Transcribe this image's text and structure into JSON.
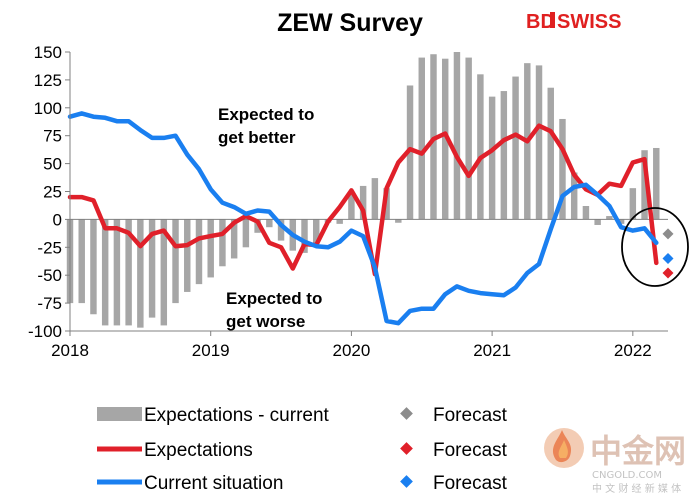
{
  "header": {
    "title": "ZEW Survey",
    "logo_bd": "BD",
    "logo_swiss": "SWISS",
    "brand_color": "#e02020"
  },
  "watermark": {
    "main": "中金网",
    "sub": "CNGOLD.COM",
    "tagline": "中 文 财 经 新 媒 体",
    "icon": "flame-logo-icon"
  },
  "annotations": {
    "better_line1": "Expected to",
    "better_line2": "get better",
    "worse_line1": "Expected to",
    "worse_line2": "get worse"
  },
  "legend": {
    "items": [
      {
        "label": "Expectations - current",
        "forecast_label": "Forecast",
        "color": "#a6a6a6",
        "marker": "bar"
      },
      {
        "label": "Expectations",
        "forecast_label": "Forecast",
        "color": "#e0202a",
        "marker": "line"
      },
      {
        "label": "Current situation",
        "forecast_label": "Forecast",
        "color": "#1a7ff0",
        "marker": "line"
      }
    ]
  },
  "chart_data": {
    "type": "bar+line",
    "title": "ZEW Survey",
    "x_tick_labels": [
      "2018",
      "2019",
      "2020",
      "2021",
      "2022"
    ],
    "x_start": "2018-01",
    "x_end": "2022-04",
    "ylim": [
      -100,
      150
    ],
    "y_ticks": [
      150,
      125,
      100,
      75,
      50,
      25,
      0,
      -25,
      -50,
      -75,
      -100
    ],
    "grid": false,
    "legend_position": "bottom",
    "months": [
      "2018-01",
      "2018-02",
      "2018-03",
      "2018-04",
      "2018-05",
      "2018-06",
      "2018-07",
      "2018-08",
      "2018-09",
      "2018-10",
      "2018-11",
      "2018-12",
      "2019-01",
      "2019-02",
      "2019-03",
      "2019-04",
      "2019-05",
      "2019-06",
      "2019-07",
      "2019-08",
      "2019-09",
      "2019-10",
      "2019-11",
      "2019-12",
      "2020-01",
      "2020-02",
      "2020-03",
      "2020-04",
      "2020-05",
      "2020-06",
      "2020-07",
      "2020-08",
      "2020-09",
      "2020-10",
      "2020-11",
      "2020-12",
      "2021-01",
      "2021-02",
      "2021-03",
      "2021-04",
      "2021-05",
      "2021-06",
      "2021-07",
      "2021-08",
      "2021-09",
      "2021-10",
      "2021-11",
      "2021-12",
      "2022-01",
      "2022-02",
      "2022-03"
    ],
    "series": [
      {
        "name": "Expectations - current",
        "type": "bar",
        "color": "#a6a6a6",
        "values": [
          -75,
          -75,
          -85,
          -95,
          -95,
          -95,
          -97,
          -88,
          -95,
          -75,
          -65,
          -58,
          -52,
          -42,
          -35,
          -25,
          -12,
          -7,
          -19,
          -28,
          -30,
          -22,
          -3,
          -4,
          24,
          30,
          37,
          28,
          -3,
          120,
          145,
          148,
          144,
          150,
          145,
          130,
          110,
          115,
          128,
          140,
          138,
          118,
          90,
          42,
          12,
          -5,
          3,
          -4,
          28,
          62,
          64
        ]
      },
      {
        "name": "Expectations",
        "type": "line",
        "color": "#e0202a",
        "values": [
          20,
          20,
          17,
          -8,
          -8,
          -12,
          -24,
          -13,
          -10,
          -24,
          -23,
          -17,
          -15,
          -13,
          -3,
          3,
          -2,
          -21,
          -25,
          -44,
          -22,
          -23,
          -2,
          11,
          26,
          8,
          -49,
          28,
          51,
          63,
          59,
          72,
          77,
          56,
          39,
          55,
          62,
          71,
          76,
          70,
          84,
          79,
          63,
          40,
          27,
          22,
          32,
          30,
          51,
          54,
          -39
        ]
      },
      {
        "name": "Current situation",
        "type": "line",
        "color": "#1a7ff0",
        "values": [
          92,
          95,
          92,
          91,
          88,
          88,
          80,
          73,
          73,
          75,
          58,
          45,
          27,
          15,
          11,
          5,
          8,
          7,
          -5,
          -14,
          -20,
          -24,
          -25,
          -20,
          -10,
          -15,
          -43,
          -91,
          -93,
          -82,
          -80,
          -80,
          -67,
          -60,
          -64,
          -66,
          -67,
          -68,
          -61,
          -48,
          -40,
          -9,
          21,
          29,
          31,
          22,
          12,
          -7,
          -10,
          -8,
          -21
        ]
      }
    ],
    "forecasts": [
      {
        "name": "Expectations - current forecast",
        "label": "Forecast",
        "month": "2022-04",
        "value": -13,
        "color": "#8c8c8c"
      },
      {
        "name": "Expectations forecast",
        "label": "Forecast",
        "month": "2022-04",
        "value": -48,
        "color": "#e0202a"
      },
      {
        "name": "Current situation forecast",
        "label": "Forecast",
        "month": "2022-04",
        "value": -35,
        "color": "#1a7ff0"
      }
    ]
  }
}
